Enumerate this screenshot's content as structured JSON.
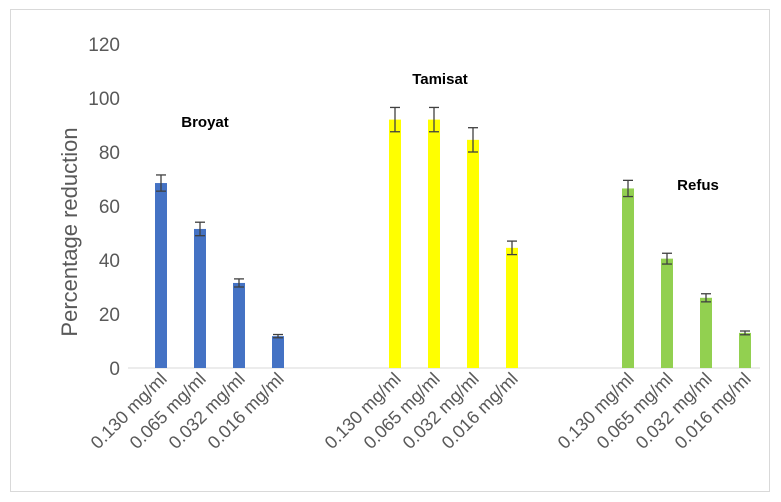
{
  "chart_data": {
    "type": "bar",
    "ylabel": "Percentage reduction",
    "xlabel": "",
    "ylim": [
      0,
      120
    ],
    "yticks": [
      0,
      20,
      40,
      60,
      80,
      100,
      120
    ],
    "grid": false,
    "groups": [
      {
        "name": "Broyat",
        "color": "#4472c4",
        "categories": [
          "0.130 mg/ml",
          "0.065 mg/ml",
          "0.032 mg/ml",
          "0.016 mg/ml"
        ],
        "values": [
          68.5,
          51.5,
          31.5,
          11.8
        ],
        "errors": [
          3.0,
          2.5,
          1.5,
          0.6
        ]
      },
      {
        "name": "Tamisat",
        "color": "#ffff00",
        "categories": [
          "0.130 mg/ml",
          "0.065 mg/ml",
          "0.032 mg/ml",
          "0.016 mg/ml"
        ],
        "values": [
          92,
          92,
          84.5,
          44.5
        ],
        "errors": [
          4.5,
          4.5,
          4.5,
          2.5
        ]
      },
      {
        "name": "Refus",
        "color": "#92d050",
        "categories": [
          "0.130 mg/ml",
          "0.065 mg/ml",
          "0.032 mg/ml",
          "0.016 mg/ml"
        ],
        "values": [
          66.5,
          40.5,
          26,
          13
        ],
        "errors": [
          3.0,
          2.0,
          1.5,
          0.7
        ]
      }
    ]
  }
}
